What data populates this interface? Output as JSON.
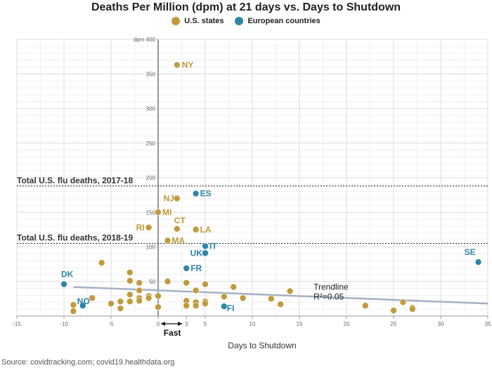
{
  "title": "Deaths Per Million (dpm) at 21 days vs. Days to Shutdown",
  "source": "Source: covidtracking.com; covid19.healthdata.org",
  "legend": [
    {
      "label": "U.S. states",
      "color": "#c09a3c"
    },
    {
      "label": "European countries",
      "color": "#2f84a8"
    }
  ],
  "colors": {
    "us": "#c09a3c",
    "eu": "#2f84a8",
    "trend": "#a5b1c4"
  },
  "chart_data": {
    "type": "scatter",
    "title": "Deaths Per Million (dpm) at 21 days vs. Days to Shutdown",
    "xlabel": "Days to Shutdown",
    "ylabel": "dpm",
    "xlim": [
      -15,
      35
    ],
    "ylim": [
      0,
      400
    ],
    "xticks": [
      -15,
      -10,
      -5,
      0,
      3,
      5,
      10,
      15,
      20,
      25,
      30,
      35
    ],
    "yticks": [
      0,
      50,
      100,
      150,
      200,
      250,
      300,
      350,
      400
    ],
    "grid": true,
    "legend_position": "top-center",
    "fast_label": "Fast",
    "reference_lines": [
      {
        "label": "Total U.S. flu deaths, 2017-18",
        "y": 188
      },
      {
        "label": "Total U.S. flu deaths, 2018-19",
        "y": 105
      }
    ],
    "trendline": {
      "label": "Trendline",
      "r2_label": "R²=0.05",
      "x": [
        -9,
        35
      ],
      "y": [
        42,
        18
      ]
    },
    "series": [
      {
        "name": "U.S. states",
        "labeled_points": [
          {
            "label": "NY",
            "x": 2,
            "y": 363
          },
          {
            "label": "NJ",
            "x": 2,
            "y": 170
          },
          {
            "label": "MI",
            "x": 0,
            "y": 150
          },
          {
            "label": "CT",
            "x": 2,
            "y": 126
          },
          {
            "label": "RI",
            "x": -1,
            "y": 128
          },
          {
            "label": "LA",
            "x": 4,
            "y": 125
          },
          {
            "label": "MA",
            "x": 1,
            "y": 109
          }
        ],
        "points": [
          {
            "x": -6,
            "y": 77
          },
          {
            "x": -3,
            "y": 63
          },
          {
            "x": -3,
            "y": 51
          },
          {
            "x": -2,
            "y": 48
          },
          {
            "x": -2,
            "y": 37
          },
          {
            "x": -3,
            "y": 31
          },
          {
            "x": -1,
            "y": 29
          },
          {
            "x": 0,
            "y": 29
          },
          {
            "x": -2,
            "y": 26
          },
          {
            "x": -1,
            "y": 26
          },
          {
            "x": -3,
            "y": 21
          },
          {
            "x": -2,
            "y": 22
          },
          {
            "x": -7,
            "y": 26
          },
          {
            "x": -5,
            "y": 18
          },
          {
            "x": -4,
            "y": 21
          },
          {
            "x": -4,
            "y": 11
          },
          {
            "x": -9,
            "y": 16
          },
          {
            "x": -9,
            "y": 7
          },
          {
            "x": 0,
            "y": 13
          },
          {
            "x": 1,
            "y": 50
          },
          {
            "x": 3,
            "y": 48
          },
          {
            "x": 4,
            "y": 37
          },
          {
            "x": 5,
            "y": 46
          },
          {
            "x": 3,
            "y": 22
          },
          {
            "x": 4,
            "y": 20
          },
          {
            "x": 5,
            "y": 21
          },
          {
            "x": 3,
            "y": 15
          },
          {
            "x": 4,
            "y": 15
          },
          {
            "x": 5,
            "y": 18
          },
          {
            "x": 7,
            "y": 28
          },
          {
            "x": 8,
            "y": 42
          },
          {
            "x": 9,
            "y": 26
          },
          {
            "x": 12,
            "y": 25
          },
          {
            "x": 13,
            "y": 17
          },
          {
            "x": 14,
            "y": 36
          },
          {
            "x": 22,
            "y": 15
          },
          {
            "x": 25,
            "y": 8
          },
          {
            "x": 26,
            "y": 20
          },
          {
            "x": 27,
            "y": 12
          },
          {
            "x": 27,
            "y": 10
          }
        ]
      },
      {
        "name": "European countries",
        "labeled_points": [
          {
            "label": "ES",
            "x": 4,
            "y": 177
          },
          {
            "label": "IT",
            "x": 5,
            "y": 101
          },
          {
            "label": "UK",
            "x": 5,
            "y": 91
          },
          {
            "label": "FR",
            "x": 3,
            "y": 69
          },
          {
            "label": "DK",
            "x": -10,
            "y": 46
          },
          {
            "label": "NO",
            "x": -8,
            "y": 15
          },
          {
            "label": "FI",
            "x": 7,
            "y": 14
          },
          {
            "label": "SE",
            "x": 34,
            "y": 78
          }
        ],
        "points": []
      }
    ]
  }
}
